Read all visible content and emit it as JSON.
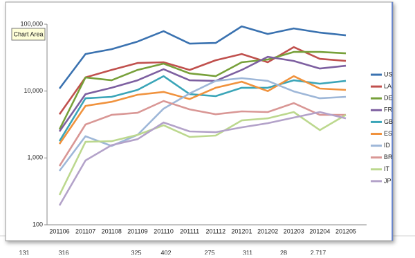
{
  "chart_data": {
    "type": "line",
    "log_scale": true,
    "grid": false,
    "legend": "right",
    "categories": [
      "201106",
      "201107",
      "201108",
      "201109",
      "201110",
      "201111",
      "201112",
      "201201",
      "201202",
      "201203",
      "201204",
      "201205"
    ],
    "ylim": [
      100,
      100000
    ],
    "yticks": [
      100,
      {
        "value": 1000,
        "label": "1,000"
      },
      {
        "value": 10000,
        "label": "10,000"
      },
      {
        "value": 100000,
        "label": "100,000"
      }
    ],
    "series": [
      {
        "name": "US",
        "color": "#3a72b0",
        "values": [
          10900,
          35800,
          42300,
          55000,
          78600,
          51200,
          52500,
          92900,
          71500,
          86400,
          75000,
          68100
        ]
      },
      {
        "name": "LA",
        "color": "#c0504d",
        "values": [
          4500,
          16000,
          20700,
          26300,
          27000,
          20700,
          28900,
          35800,
          27000,
          45500,
          30300,
          28200
        ]
      },
      {
        "name": "DE",
        "color": "#77a03a",
        "values": [
          2670,
          16000,
          14500,
          20700,
          25700,
          18400,
          16700,
          27000,
          29600,
          38500,
          38500,
          36700
        ]
      },
      {
        "name": "FR",
        "color": "#7d5fa0",
        "values": [
          2490,
          9000,
          11200,
          14500,
          21200,
          14500,
          14200,
          20700,
          32600,
          28200,
          21700,
          23900
        ]
      },
      {
        "name": "GB",
        "color": "#3aa5b8",
        "values": [
          1780,
          7800,
          8200,
          10400,
          16700,
          9000,
          8400,
          11200,
          11200,
          14500,
          12900,
          14200
        ]
      },
      {
        "name": "ES",
        "color": "#f0923d",
        "values": [
          1620,
          6000,
          6900,
          8800,
          9700,
          7600,
          11200,
          13800,
          10000,
          16700,
          10900,
          10400
        ]
      },
      {
        "name": "ID",
        "color": "#9eb7d8",
        "values": [
          641,
          2110,
          1510,
          2210,
          5460,
          9220,
          14200,
          15600,
          14200,
          9900,
          7800,
          8200
        ]
      },
      {
        "name": "BR",
        "color": "#d99795",
        "values": [
          757,
          3160,
          4400,
          4730,
          7100,
          5330,
          4500,
          4970,
          4850,
          6600,
          4400,
          4400
        ]
      },
      {
        "name": "IT",
        "color": "#bcd88e",
        "values": [
          279,
          1740,
          1780,
          2210,
          3080,
          2060,
          2160,
          3640,
          3910,
          4850,
          2610,
          4400
        ]
      },
      {
        "name": "JP",
        "color": "#b3a2c9",
        "values": [
          195,
          916,
          1550,
          1910,
          3390,
          2490,
          2430,
          2870,
          3310,
          4010,
          4850,
          3910
        ]
      }
    ]
  },
  "tooltip": "Chart Area",
  "background_cells": [
    "131",
    "316",
    "325",
    "402",
    "275",
    "311",
    "28",
    "2,717"
  ]
}
